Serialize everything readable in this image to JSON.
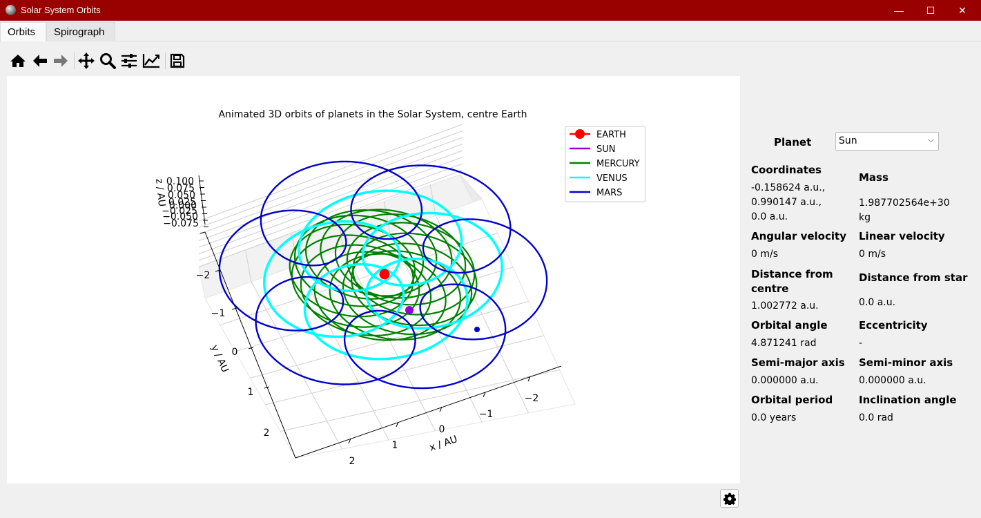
{
  "window": {
    "title": "Solar System Orbits",
    "minimize": "—",
    "maximize": "☐",
    "close": "✕"
  },
  "tabs": [
    {
      "label": "Orbits"
    },
    {
      "label": "Spirograph"
    }
  ],
  "toolbar": [
    {
      "name": "home-icon"
    },
    {
      "name": "back-icon"
    },
    {
      "name": "forward-icon"
    },
    {
      "name": "pan-icon"
    },
    {
      "name": "zoom-icon"
    },
    {
      "name": "configure-subplots-icon"
    },
    {
      "name": "edit-axis-icon"
    },
    {
      "name": "save-icon"
    }
  ],
  "chart_data": {
    "type": "line",
    "title": "Animated 3D orbits of planets in the Solar System, centre Earth",
    "xlabel": "x / AU",
    "ylabel": "y / AU",
    "zlabel": "z / AU",
    "x_ticks": [
      "2",
      "1",
      "0",
      "−1",
      "−2"
    ],
    "y_ticks": [
      "−2",
      "−1",
      "0",
      "1",
      "2"
    ],
    "z_ticks": [
      "0.100",
      "0.075",
      "0.050",
      "0.025",
      "0.000",
      "−0.025",
      "−0.050",
      "−0.075"
    ],
    "legend": [
      {
        "name": "EARTH",
        "color": "#ff0000",
        "marker": true
      },
      {
        "name": "SUN",
        "color": "#9400d3",
        "marker": false
      },
      {
        "name": "MERCURY",
        "color": "#008000",
        "marker": false
      },
      {
        "name": "VENUS",
        "color": "#00ffff",
        "marker": false
      },
      {
        "name": "MARS",
        "color": "#0000cd",
        "marker": false
      }
    ],
    "legend_position": "top-right"
  },
  "panel": {
    "planet_label": "Planet",
    "planet_selected": "Sun",
    "coordinates_label": "Coordinates",
    "coordinates_lines": [
      "-0.158624 a.u.,",
      "0.990147 a.u.,",
      "0.0 a.u."
    ],
    "mass_label": "Mass",
    "mass_lines": [
      "1.987702564e+30",
      "kg"
    ],
    "angular_velocity_label": "Angular velocity",
    "angular_velocity_value": "0 m/s",
    "linear_velocity_label": "Linear velocity",
    "linear_velocity_value": "0 m/s",
    "distance_centre_label_lines": [
      "Distance from",
      "centre"
    ],
    "distance_centre_value": "1.002772 a.u.",
    "distance_star_label": "Distance from star",
    "distance_star_value": "0.0 a.u.",
    "orbital_angle_label": "Orbital angle",
    "orbital_angle_value": "4.871241 rad",
    "eccentricity_label": "Eccentricity",
    "eccentricity_value": "-",
    "semi_major_label": "Semi-major axis",
    "semi_major_value": "0.000000 a.u.",
    "semi_minor_label": "Semi-minor axis",
    "semi_minor_value": "0.000000 a.u.",
    "orbital_period_label": "Orbital period",
    "orbital_period_value": "0.0 years",
    "inclination_label": "Inclination angle",
    "inclination_value": "0.0 rad"
  }
}
